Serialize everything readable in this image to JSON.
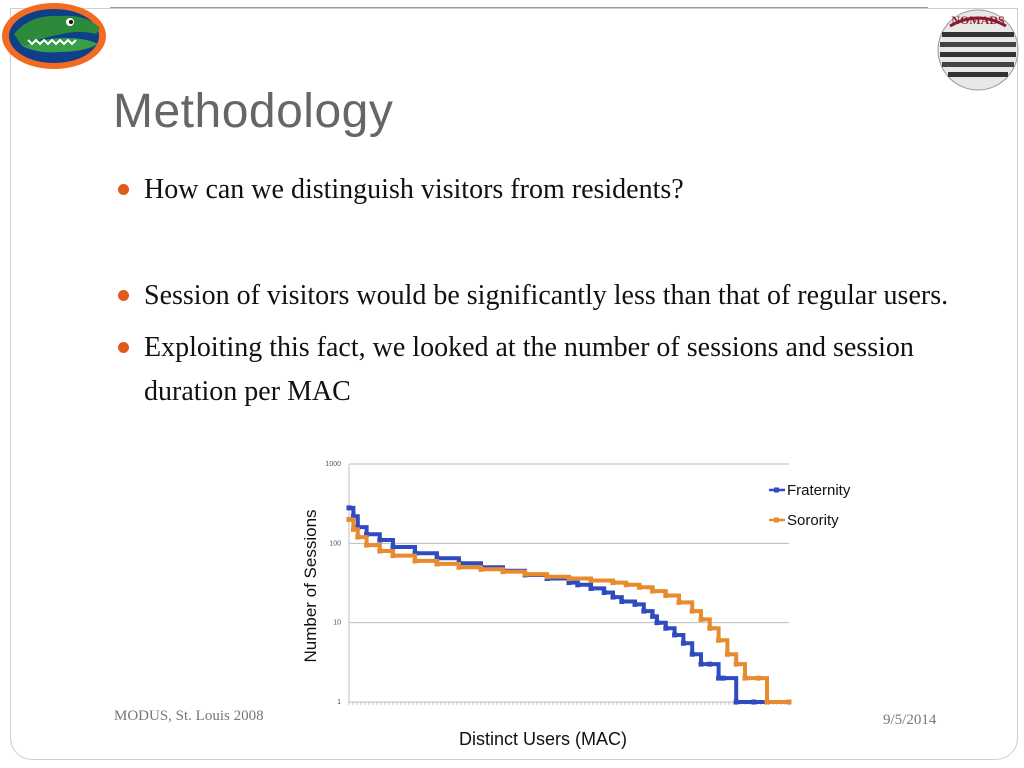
{
  "slide": {
    "title": "Methodology",
    "bullets": [
      "How can we distinguish visitors from residents?",
      "Session of visitors would be significantly less than that of regular users.",
      "Exploiting this fact, we looked at the number of sessions and session duration per MAC"
    ]
  },
  "logos": {
    "right_text": "NOMADS"
  },
  "footer": {
    "left": "MODUS, St. Louis 2008",
    "right": "9/5/2014"
  },
  "colors": {
    "bullet": "#e05a1f",
    "fraternity": "#2e4bbf",
    "sorority": "#e88a2e",
    "title": "#666666"
  },
  "chart_data": {
    "type": "line",
    "xlabel": "Distinct Users (MAC)",
    "ylabel": "Number of Sessions",
    "yscale": "log",
    "ylim": [
      1,
      1000
    ],
    "yticks": [
      "1000",
      "100",
      "10",
      "1"
    ],
    "xlim": [
      0,
      100
    ],
    "grid": true,
    "legend": "top-right",
    "series": [
      {
        "name": "Fraternity",
        "color": "#2e4bbf",
        "x": [
          0,
          1,
          2,
          4,
          7,
          10,
          15,
          20,
          25,
          30,
          35,
          40,
          45,
          50,
          52,
          55,
          58,
          60,
          62,
          65,
          67,
          69,
          70,
          72,
          74,
          76,
          78,
          80,
          82,
          84,
          85,
          88,
          92,
          95,
          100
        ],
        "y": [
          280,
          220,
          160,
          130,
          110,
          90,
          75,
          65,
          56,
          50,
          45,
          40,
          36,
          32,
          30,
          27,
          24,
          21,
          18.5,
          17,
          14,
          12,
          10,
          8.5,
          7,
          5.5,
          4,
          3,
          3,
          2,
          2,
          1,
          1,
          1,
          1
        ]
      },
      {
        "name": "Sorority",
        "color": "#e88a2e",
        "x": [
          0,
          1,
          2,
          4,
          7,
          10,
          15,
          20,
          25,
          30,
          35,
          40,
          45,
          50,
          55,
          60,
          63,
          66,
          69,
          72,
          75,
          78,
          80,
          82,
          84,
          86,
          88,
          90,
          93,
          95,
          100
        ],
        "y": [
          200,
          150,
          120,
          95,
          80,
          70,
          60,
          55,
          50,
          47,
          44,
          41,
          38,
          36,
          34,
          32,
          30,
          28,
          25,
          22,
          18,
          14,
          11,
          8.5,
          6,
          4,
          3,
          2,
          2,
          1,
          1
        ]
      }
    ]
  }
}
